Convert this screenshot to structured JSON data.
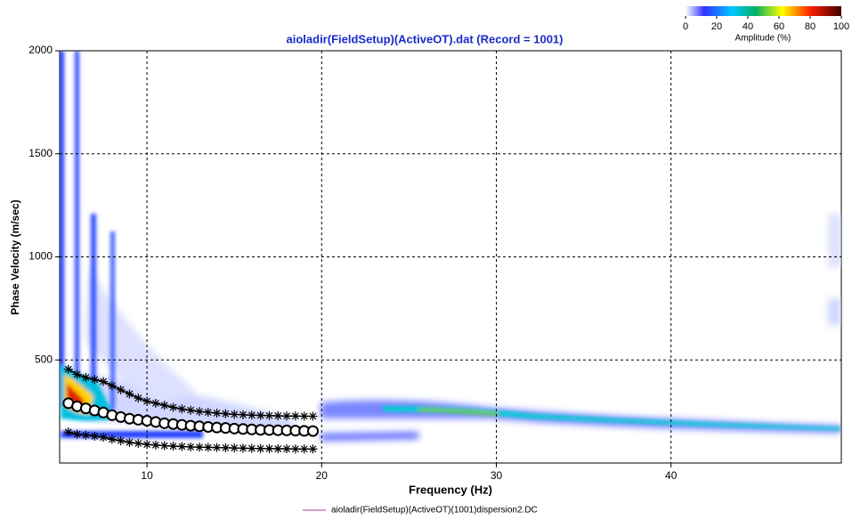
{
  "chart_data": {
    "type": "scatter",
    "title": "aioladir(FieldSetup)(ActiveOT).dat (Record = 1001)",
    "x_label": "Frequency (Hz)",
    "y_label": "Phase Velocity (m/sec)",
    "xlim": [
      5,
      49.75
    ],
    "xticks": [
      10,
      20,
      30,
      40
    ],
    "ylim": [
      0,
      2000
    ],
    "yticks": [
      500,
      1000,
      1500,
      2000
    ],
    "grid": true,
    "x": [
      5.5,
      6,
      6.5,
      7,
      7.5,
      8,
      8.5,
      9,
      9.5,
      10,
      10.5,
      11,
      11.5,
      12,
      12.5,
      13,
      13.5,
      14,
      14.5,
      15,
      15.5,
      16,
      16.5,
      17,
      17.5,
      18,
      18.5,
      19,
      19.5
    ],
    "series": [
      {
        "name": "aioladir(FieldSetup)(ActiveOT)(1001)dispersion2.DC",
        "color": "#c080c0",
        "marker": "circle",
        "values": [
          290,
          275,
          265,
          255,
          245,
          232,
          223,
          215,
          210,
          205,
          199,
          193,
          189,
          185,
          181,
          178,
          175,
          172,
          170,
          167,
          165,
          163,
          161,
          160,
          159,
          158,
          157,
          156,
          155
        ]
      },
      {
        "color": "#000000",
        "marker": "star",
        "values": [
          455,
          430,
          415,
          405,
          395,
          375,
          355,
          335,
          315,
          300,
          290,
          280,
          270,
          262,
          256,
          250,
          246,
          242,
          239,
          236,
          234,
          232,
          231,
          230,
          229,
          228,
          228,
          227,
          227
        ]
      },
      {
        "color": "#000000",
        "marker": "star",
        "values": [
          150,
          140,
          135,
          130,
          125,
          115,
          108,
          100,
          95,
          90,
          87,
          84,
          82,
          80,
          78,
          77,
          76,
          75,
          74,
          73,
          72,
          71,
          70,
          70,
          69,
          69,
          68,
          68,
          68
        ]
      }
    ],
    "colorbar": {
      "label": "Amplitude (%)",
      "lim": [
        0,
        100
      ],
      "ticks": [
        0,
        20,
        40,
        60,
        80,
        100
      ]
    }
  }
}
